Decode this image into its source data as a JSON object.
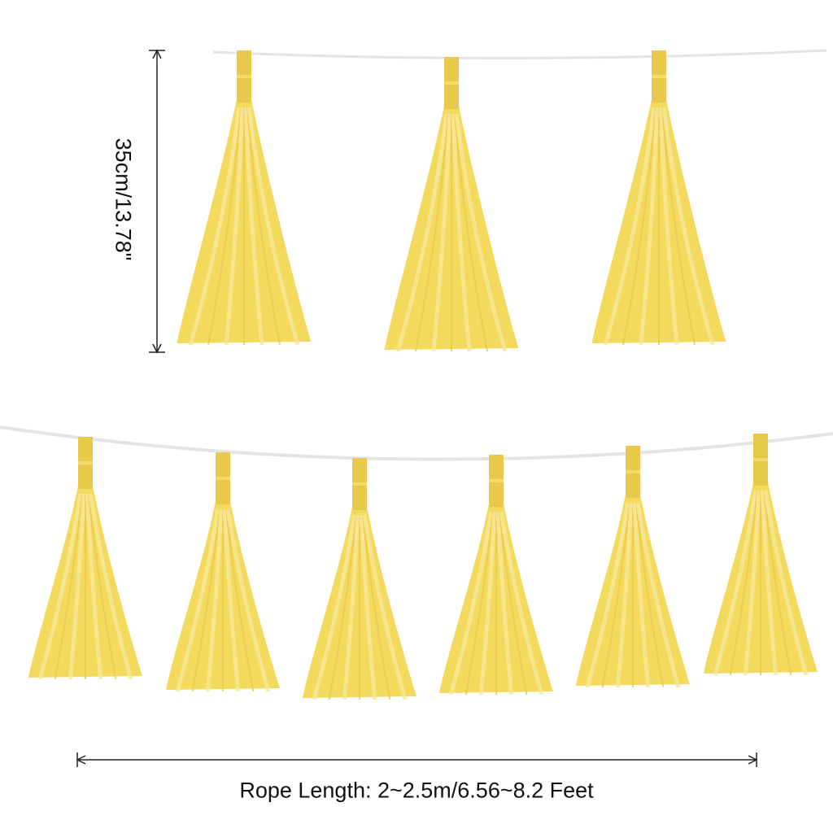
{
  "dimensions": {
    "height_label": "35cm/13.78\"",
    "rope_length_label": "Rope Length: 2~2.5m/6.56~8.2 Feet"
  },
  "product": {
    "tassel_color": "#f3d95c",
    "tassel_light_color": "#f8e79a",
    "tab_color": "#e8c94a",
    "rope_color": "#e6e6e6",
    "top_row_count": 3,
    "bottom_row_count": 6
  }
}
